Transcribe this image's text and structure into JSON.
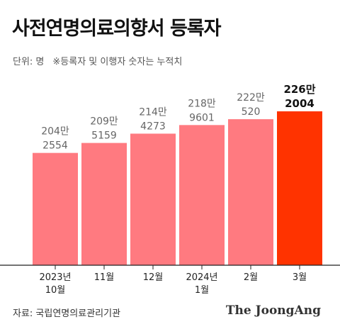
{
  "header": {
    "title": "사전연명의료의향서 등록자",
    "unit_note": "단위: 명",
    "cumulative_note": "※등록자 및 이행자 숫자는 누적치"
  },
  "footer": {
    "source": "자료: 국립연명의료관리기관",
    "brand": "The JoongAng"
  },
  "colors": {
    "bar": "#ff7a80",
    "highlight_bar": "#ff3300",
    "axis": "#222222",
    "label": "#666666",
    "highlight_label": "#111111"
  },
  "chart_data": {
    "type": "bar",
    "title": "사전연명의료의향서 등록자",
    "xlabel": "",
    "ylabel": "",
    "unit": "명",
    "categories": [
      "2023년 10월",
      "11월",
      "12월",
      "2024년 1월",
      "2월",
      "3월"
    ],
    "category_lines": [
      [
        "2023년",
        "10월"
      ],
      [
        "11월"
      ],
      [
        "12월"
      ],
      [
        "2024년",
        "1월"
      ],
      [
        "2월"
      ],
      [
        "3월"
      ]
    ],
    "values": [
      2042554,
      2095159,
      2144273,
      2189601,
      2220520,
      2262004
    ],
    "value_labels": [
      [
        "204만",
        "2554"
      ],
      [
        "209만",
        "5159"
      ],
      [
        "214만",
        "4273"
      ],
      [
        "218만",
        "9601"
      ],
      [
        "222만",
        "520"
      ],
      [
        "226만",
        "2004"
      ]
    ],
    "highlight_index": 5,
    "grid": false,
    "legend": "none"
  }
}
